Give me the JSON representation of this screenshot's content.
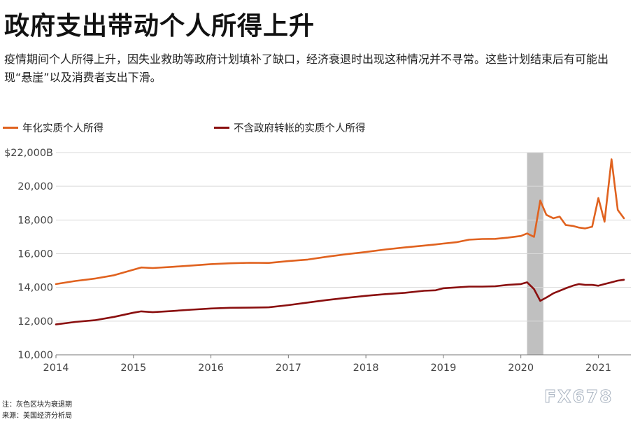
{
  "header": {
    "title": "政府支出带动个人所得上升",
    "subtitle": "疫情期间个人所得上升，因失业救助等政府计划填补了缺口，经济衰退时出现这种情况并不寻常。这些计划结束后有可能出现“悬崖”以及消费者支出下滑。"
  },
  "footer": {
    "note": "注：灰色区块为衰退期",
    "source": "来源：美国经济分析局",
    "watermark": "FX678"
  },
  "chart_data": {
    "type": "line",
    "title": "政府支出带动个人所得上升",
    "xlabel": "",
    "ylabel": "",
    "xlim": [
      2014.0,
      2021.42
    ],
    "ylim": [
      10000,
      22000
    ],
    "y_ticks": [
      10000,
      12000,
      14000,
      16000,
      18000,
      20000,
      22000
    ],
    "y_tick_labels": [
      "10,000",
      "12,000",
      "14,000",
      "16,000",
      "18,000",
      "20,000",
      "$22,000B"
    ],
    "x_ticks": [
      2014,
      2015,
      2016,
      2017,
      2018,
      2019,
      2020,
      2021
    ],
    "x_tick_labels": [
      "2014",
      "2015",
      "2016",
      "2017",
      "2018",
      "2019",
      "2020",
      "2021"
    ],
    "grid": "horizontal",
    "legend_position": "top-left",
    "recession": {
      "start": 2020.08,
      "end": 2020.29,
      "color": "#c0c0c0"
    },
    "series": [
      {
        "name": "年化实质个人所得",
        "color": "#e0621f",
        "points": [
          [
            2014.0,
            14200
          ],
          [
            2014.25,
            14380
          ],
          [
            2014.5,
            14520
          ],
          [
            2014.75,
            14720
          ],
          [
            2015.0,
            15050
          ],
          [
            2015.1,
            15180
          ],
          [
            2015.25,
            15150
          ],
          [
            2015.5,
            15220
          ],
          [
            2015.75,
            15300
          ],
          [
            2016.0,
            15380
          ],
          [
            2016.25,
            15430
          ],
          [
            2016.5,
            15460
          ],
          [
            2016.75,
            15450
          ],
          [
            2017.0,
            15560
          ],
          [
            2017.25,
            15650
          ],
          [
            2017.5,
            15820
          ],
          [
            2017.75,
            15970
          ],
          [
            2018.0,
            16100
          ],
          [
            2018.25,
            16250
          ],
          [
            2018.5,
            16370
          ],
          [
            2018.75,
            16480
          ],
          [
            2018.9,
            16550
          ],
          [
            2019.0,
            16600
          ],
          [
            2019.17,
            16680
          ],
          [
            2019.33,
            16830
          ],
          [
            2019.5,
            16870
          ],
          [
            2019.67,
            16880
          ],
          [
            2019.83,
            16950
          ],
          [
            2020.0,
            17050
          ],
          [
            2020.08,
            17200
          ],
          [
            2020.17,
            17000
          ],
          [
            2020.25,
            19150
          ],
          [
            2020.33,
            18300
          ],
          [
            2020.42,
            18100
          ],
          [
            2020.5,
            18200
          ],
          [
            2020.58,
            17700
          ],
          [
            2020.67,
            17650
          ],
          [
            2020.75,
            17550
          ],
          [
            2020.83,
            17500
          ],
          [
            2020.92,
            17600
          ],
          [
            2021.0,
            19300
          ],
          [
            2021.08,
            17900
          ],
          [
            2021.17,
            21600
          ],
          [
            2021.25,
            18600
          ],
          [
            2021.33,
            18100
          ]
        ]
      },
      {
        "name": "不含政府转帐的实质个人所得",
        "color": "#8a0f0f",
        "points": [
          [
            2014.0,
            11800
          ],
          [
            2014.25,
            11950
          ],
          [
            2014.5,
            12050
          ],
          [
            2014.75,
            12250
          ],
          [
            2015.0,
            12500
          ],
          [
            2015.1,
            12580
          ],
          [
            2015.25,
            12530
          ],
          [
            2015.5,
            12600
          ],
          [
            2015.75,
            12680
          ],
          [
            2016.0,
            12750
          ],
          [
            2016.25,
            12790
          ],
          [
            2016.5,
            12800
          ],
          [
            2016.75,
            12820
          ],
          [
            2017.0,
            12950
          ],
          [
            2017.25,
            13100
          ],
          [
            2017.5,
            13250
          ],
          [
            2017.75,
            13380
          ],
          [
            2018.0,
            13500
          ],
          [
            2018.25,
            13600
          ],
          [
            2018.5,
            13680
          ],
          [
            2018.75,
            13800
          ],
          [
            2018.9,
            13830
          ],
          [
            2019.0,
            13950
          ],
          [
            2019.17,
            14000
          ],
          [
            2019.33,
            14050
          ],
          [
            2019.5,
            14050
          ],
          [
            2019.67,
            14070
          ],
          [
            2019.83,
            14150
          ],
          [
            2020.0,
            14200
          ],
          [
            2020.08,
            14300
          ],
          [
            2020.17,
            13900
          ],
          [
            2020.25,
            13200
          ],
          [
            2020.33,
            13400
          ],
          [
            2020.42,
            13650
          ],
          [
            2020.5,
            13800
          ],
          [
            2020.58,
            13950
          ],
          [
            2020.67,
            14100
          ],
          [
            2020.75,
            14200
          ],
          [
            2020.83,
            14150
          ],
          [
            2020.92,
            14150
          ],
          [
            2021.0,
            14100
          ],
          [
            2021.08,
            14200
          ],
          [
            2021.17,
            14300
          ],
          [
            2021.25,
            14400
          ],
          [
            2021.33,
            14450
          ]
        ]
      }
    ]
  }
}
